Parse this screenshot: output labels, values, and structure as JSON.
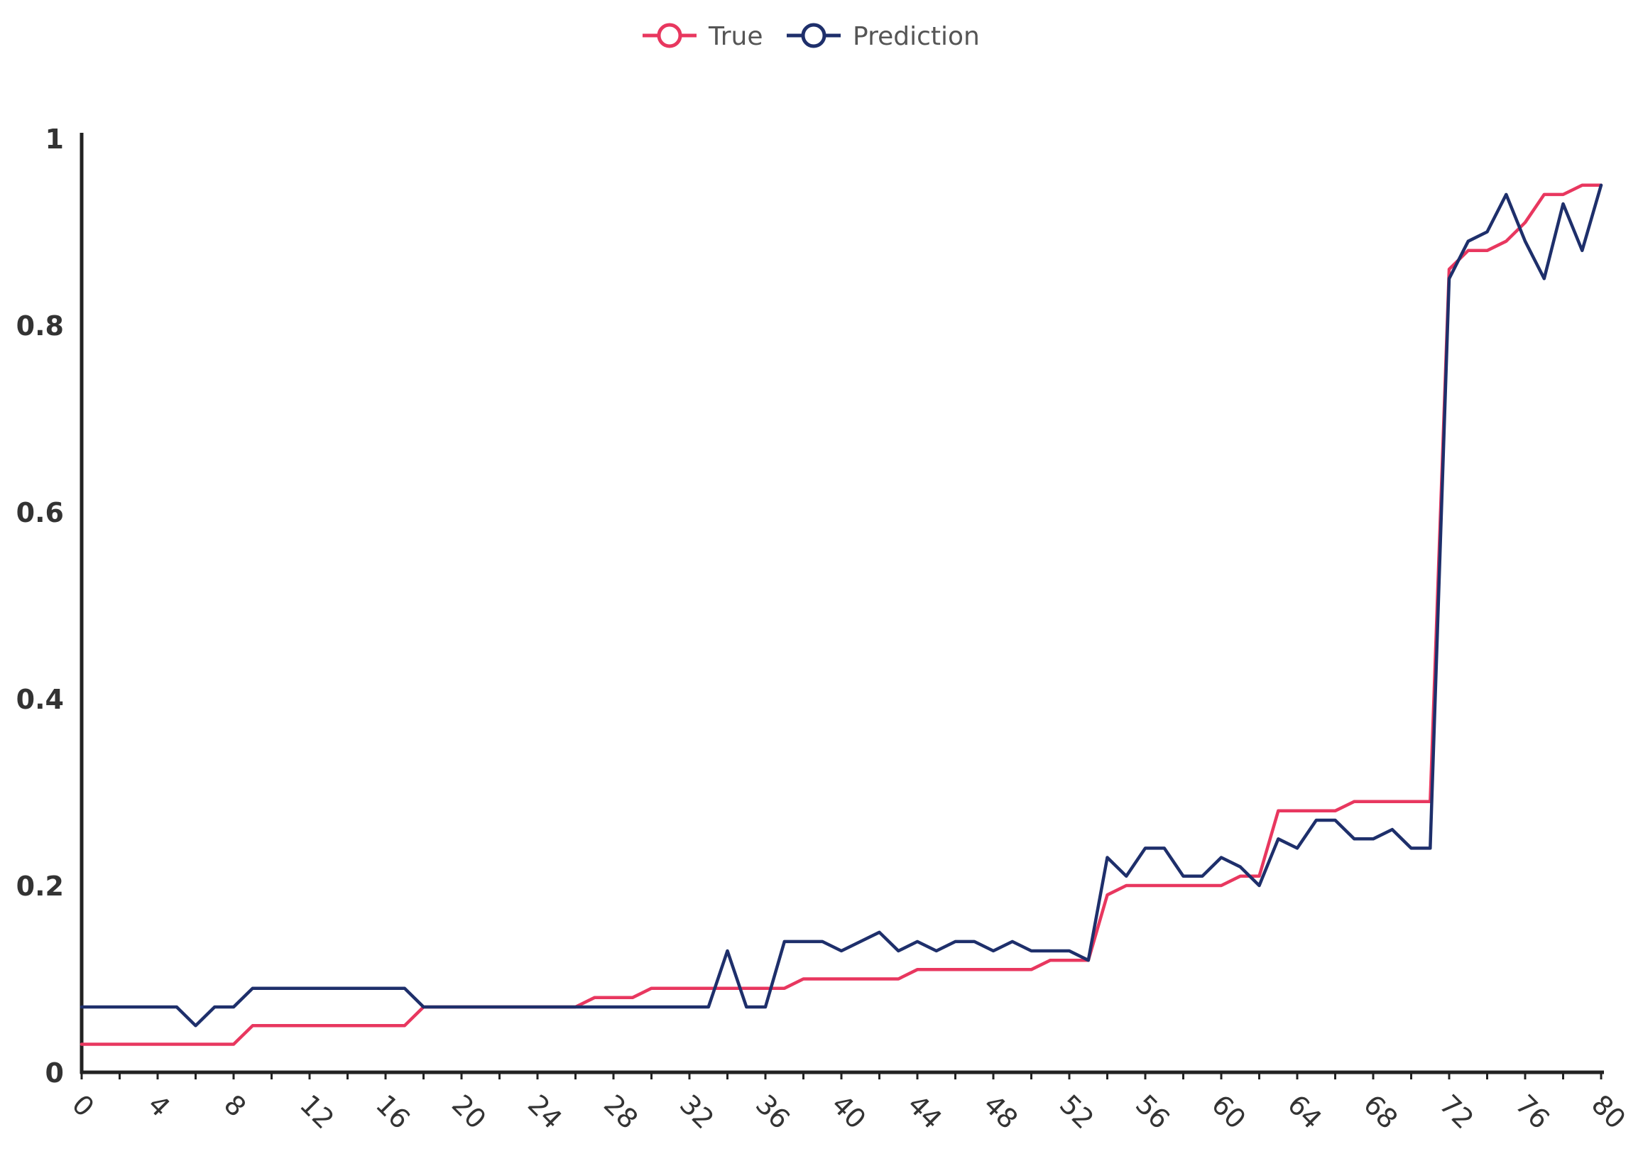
{
  "chart_data": {
    "type": "line",
    "x": [
      0,
      1,
      2,
      3,
      4,
      5,
      6,
      7,
      8,
      9,
      10,
      11,
      12,
      13,
      14,
      15,
      16,
      17,
      18,
      19,
      20,
      21,
      22,
      23,
      24,
      25,
      26,
      27,
      28,
      29,
      30,
      31,
      32,
      33,
      34,
      35,
      36,
      37,
      38,
      39,
      40,
      41,
      42,
      43,
      44,
      45,
      46,
      47,
      48,
      49,
      50,
      51,
      52,
      53,
      54,
      55,
      56,
      57,
      58,
      59,
      60,
      61,
      62,
      63,
      64,
      65,
      66,
      67,
      68,
      69,
      70,
      71,
      72,
      73,
      74,
      75,
      76,
      77,
      78,
      79,
      80
    ],
    "series": [
      {
        "name": "True",
        "color": "#e8375f",
        "values": [
          0.03,
          0.03,
          0.03,
          0.03,
          0.03,
          0.03,
          0.03,
          0.03,
          0.03,
          0.05,
          0.05,
          0.05,
          0.05,
          0.05,
          0.05,
          0.05,
          0.05,
          0.05,
          0.07,
          0.07,
          0.07,
          0.07,
          0.07,
          0.07,
          0.07,
          0.07,
          0.07,
          0.08,
          0.08,
          0.08,
          0.09,
          0.09,
          0.09,
          0.09,
          0.09,
          0.09,
          0.09,
          0.09,
          0.1,
          0.1,
          0.1,
          0.1,
          0.1,
          0.1,
          0.11,
          0.11,
          0.11,
          0.11,
          0.11,
          0.11,
          0.11,
          0.12,
          0.12,
          0.12,
          0.19,
          0.2,
          0.2,
          0.2,
          0.2,
          0.2,
          0.2,
          0.21,
          0.21,
          0.28,
          0.28,
          0.28,
          0.28,
          0.29,
          0.29,
          0.29,
          0.29,
          0.29,
          0.86,
          0.88,
          0.88,
          0.89,
          0.91,
          0.94,
          0.94,
          0.95,
          0.95
        ]
      },
      {
        "name": "Prediction",
        "color": "#1e2f6b",
        "values": [
          0.07,
          0.07,
          0.07,
          0.07,
          0.07,
          0.07,
          0.05,
          0.07,
          0.07,
          0.09,
          0.09,
          0.09,
          0.09,
          0.09,
          0.09,
          0.09,
          0.09,
          0.09,
          0.07,
          0.07,
          0.07,
          0.07,
          0.07,
          0.07,
          0.07,
          0.07,
          0.07,
          0.07,
          0.07,
          0.07,
          0.07,
          0.07,
          0.07,
          0.07,
          0.13,
          0.07,
          0.07,
          0.14,
          0.14,
          0.14,
          0.13,
          0.14,
          0.15,
          0.13,
          0.14,
          0.13,
          0.14,
          0.14,
          0.13,
          0.14,
          0.13,
          0.13,
          0.13,
          0.12,
          0.23,
          0.21,
          0.24,
          0.24,
          0.21,
          0.21,
          0.23,
          0.22,
          0.2,
          0.25,
          0.24,
          0.27,
          0.27,
          0.25,
          0.25,
          0.26,
          0.24,
          0.24,
          0.85,
          0.89,
          0.9,
          0.94,
          0.89,
          0.85,
          0.93,
          0.88,
          0.95
        ]
      }
    ],
    "xlim": [
      0,
      80
    ],
    "ylim": [
      0,
      1
    ],
    "xticks": [
      "0",
      "4",
      "8",
      "12",
      "16",
      "20",
      "24",
      "28",
      "32",
      "36",
      "40",
      "44",
      "48",
      "52",
      "56",
      "60",
      "64",
      "68",
      "72",
      "76",
      "80"
    ],
    "yticks": [
      "0",
      "0.2",
      "0.4",
      "0.6",
      "0.8",
      "1"
    ],
    "xlabel": "",
    "ylabel": "",
    "title": "",
    "grid": false,
    "legend_position": "top-center"
  }
}
